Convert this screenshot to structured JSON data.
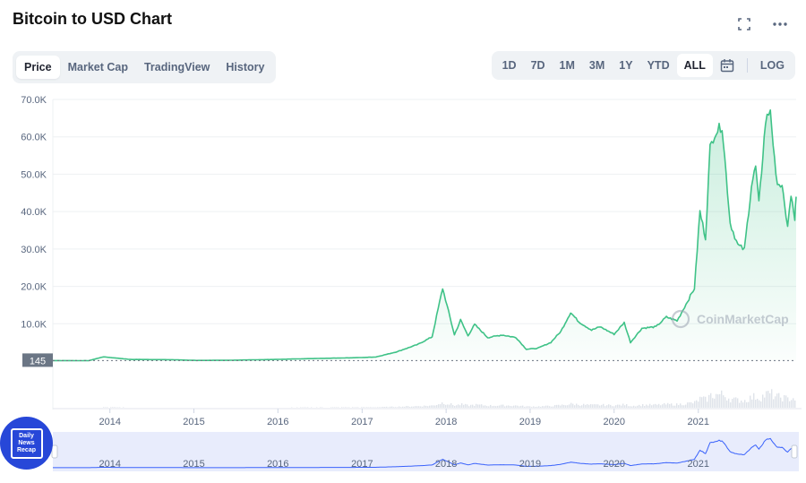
{
  "header": {
    "title": "Bitcoin to USD Chart"
  },
  "tabs": [
    {
      "label": "Price",
      "active": true
    },
    {
      "label": "Market Cap",
      "active": false
    },
    {
      "label": "TradingView",
      "active": false
    },
    {
      "label": "History",
      "active": false
    }
  ],
  "ranges": [
    {
      "label": "1D",
      "active": false
    },
    {
      "label": "7D",
      "active": false
    },
    {
      "label": "1M",
      "active": false
    },
    {
      "label": "3M",
      "active": false
    },
    {
      "label": "1Y",
      "active": false
    },
    {
      "label": "YTD",
      "active": false
    },
    {
      "label": "ALL",
      "active": true
    }
  ],
  "log_label": "LOG",
  "icons": {
    "fullscreen": "fullscreen-icon",
    "more": "more-options-icon",
    "calendar": "calendar-icon"
  },
  "watermark": "CoinMarketCap",
  "badge": {
    "lines": [
      "Daily",
      "News",
      "Recap"
    ]
  },
  "colors": {
    "line": "#3fc287",
    "area_top": "#cdeedb",
    "navigator_line": "#3861fb",
    "navigator_bg": "#e8ecfc",
    "badge": "#2747d8"
  },
  "chart_data": {
    "type": "area",
    "title": "",
    "xlabel": "",
    "ylabel": "",
    "y_unit": "USD",
    "ylim": [
      0,
      70000
    ],
    "y_ticks": [
      "10.0K",
      "20.0K",
      "30.0K",
      "40.0K",
      "50.0K",
      "60.0K",
      "70.0K"
    ],
    "x_ticks": [
      "2014",
      "2015",
      "2016",
      "2017",
      "2018",
      "2019",
      "2020",
      "2021"
    ],
    "current_value_label": "145",
    "current_value": 145,
    "grid": true,
    "x": [
      "2013-04-28",
      "2013-10-01",
      "2013-12-04",
      "2014-04-01",
      "2014-10-01",
      "2015-01-14",
      "2015-06-01",
      "2015-12-01",
      "2016-06-15",
      "2016-12-31",
      "2017-03-01",
      "2017-06-01",
      "2017-09-01",
      "2017-11-01",
      "2017-12-17",
      "2018-02-06",
      "2018-03-05",
      "2018-04-06",
      "2018-05-05",
      "2018-07-01",
      "2018-09-01",
      "2018-11-01",
      "2018-12-15",
      "2019-02-01",
      "2019-04-01",
      "2019-05-15",
      "2019-06-26",
      "2019-08-01",
      "2019-09-25",
      "2019-11-01",
      "2020-01-01",
      "2020-02-14",
      "2020-03-12",
      "2020-05-01",
      "2020-07-01",
      "2020-08-15",
      "2020-10-01",
      "2020-11-15",
      "2020-12-15",
      "2021-01-08",
      "2021-02-01",
      "2021-02-21",
      "2021-03-13",
      "2021-04-14",
      "2021-05-19",
      "2021-06-22",
      "2021-07-20",
      "2021-08-20",
      "2021-09-07",
      "2021-09-21",
      "2021-10-20",
      "2021-11-10",
      "2021-12-04",
      "2021-12-31",
      "2022-01-10",
      "2022-01-24",
      "2022-02-08",
      "2022-02-24",
      "2022-03-02"
    ],
    "series": [
      {
        "values": [
          135,
          130,
          1150,
          450,
          380,
          180,
          230,
          430,
          700,
          960,
          1100,
          2500,
          4500,
          6500,
          19500,
          7000,
          11000,
          6800,
          9800,
          6300,
          7000,
          6300,
          3200,
          3400,
          5000,
          8000,
          13000,
          10500,
          8300,
          9200,
          7200,
          10300,
          5000,
          8800,
          9200,
          11800,
          10800,
          16000,
          19500,
          40000,
          33000,
          57000,
          61000,
          63000,
          37000,
          31000,
          29800,
          47000,
          52000,
          42000,
          64000,
          67500,
          49000,
          46300,
          41800,
          36300,
          44000,
          38000,
          44000
        ]
      }
    ]
  }
}
